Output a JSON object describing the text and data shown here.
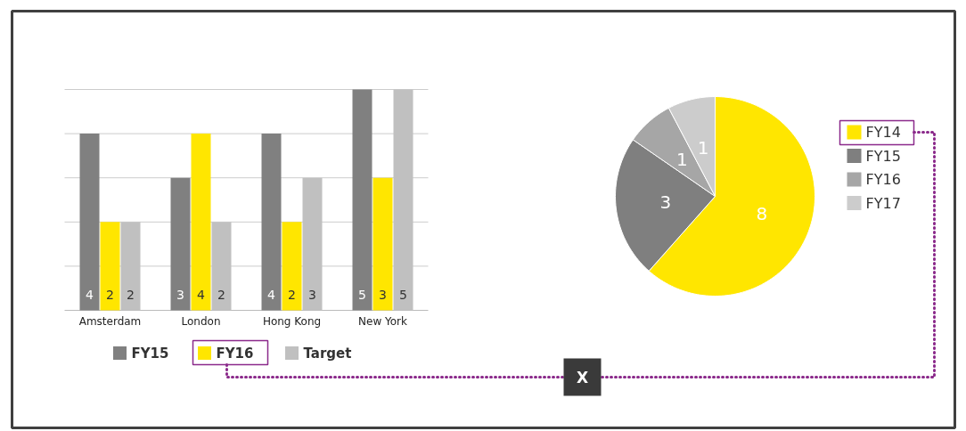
{
  "chart_data": [
    {
      "type": "bar",
      "categories": [
        "Amsterdam",
        "London",
        "Hong Kong",
        "New York"
      ],
      "series": [
        {
          "name": "FY15",
          "color": "#808080",
          "values": [
            4,
            3,
            4,
            5
          ]
        },
        {
          "name": "FY16",
          "color": "#ffe600",
          "values": [
            2,
            4,
            2,
            3
          ]
        },
        {
          "name": "Target",
          "color": "#c0c0c0",
          "values": [
            2,
            2,
            3,
            5
          ]
        }
      ],
      "ylim": [
        0,
        5
      ],
      "yticks": [
        {
          "value": 0,
          "label": null
        },
        {
          "value": 1,
          "label": null
        },
        {
          "value": 2,
          "label": null
        },
        {
          "value": 3,
          "label": null
        },
        {
          "value": 4,
          "label": null
        },
        {
          "value": 5,
          "label": null
        }
      ],
      "tick_labels": "x",
      "grid": "y",
      "legend": "bottom",
      "data_labels": true
    },
    {
      "type": "pie",
      "categories": [
        "FY14",
        "FY15",
        "FY16",
        "FY17"
      ],
      "values": [
        8,
        3,
        1,
        1
      ],
      "colors": [
        "#ffe600",
        "#7f7f7f",
        "#a6a6a6",
        "#cccccc"
      ],
      "legend": "right",
      "data_labels": true,
      "annotations": [
        "X"
      ]
    }
  ]
}
